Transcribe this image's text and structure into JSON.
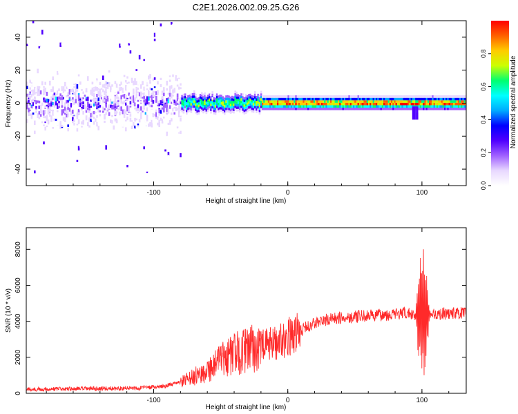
{
  "figure": {
    "title": "C2E1.2026.002.09.25.G26"
  },
  "colors": {
    "background": "#ffffff",
    "axis": "#000000",
    "snr_line": "#ff2a2a",
    "colormap": [
      "#ffffff",
      "#e8d8ff",
      "#a060ff",
      "#5000ff",
      "#0000ff",
      "#00aaff",
      "#00ffff",
      "#00ff70",
      "#ccff00",
      "#ffcc00",
      "#ff6000",
      "#ff0000"
    ]
  },
  "chart_data": [
    {
      "type": "heatmap",
      "title": "C2E1.2026.002.09.25.G26",
      "xlabel": "Height of straight line (km)",
      "ylabel": "Frequency (Hz)",
      "xlim": [
        -195,
        133
      ],
      "ylim": [
        -50,
        50
      ],
      "xticks": [
        -100,
        0,
        100
      ],
      "xtick_labels": [
        "-100",
        "0",
        "100"
      ],
      "yticks": [
        -40,
        -20,
        0,
        20,
        40
      ],
      "ytick_labels": [
        "-40",
        "-20",
        "0",
        "20",
        "40"
      ],
      "grid": false,
      "signal_band_hz": 0,
      "noise_region_end_km": -80,
      "colorbar": {
        "label": "Normalized spectral amplitude",
        "range": [
          0,
          1
        ],
        "ticks": [
          0.0,
          0.2,
          0.4,
          0.6,
          0.8
        ],
        "tick_labels": [
          "0.0",
          "0.2",
          "0.4",
          "0.6",
          "0.8"
        ]
      }
    },
    {
      "type": "line",
      "series": [
        {
          "name": "SNR"
        }
      ],
      "xlabel": "Height of straight line (km)",
      "ylabel": "SNR (10 * v/v)",
      "xlim": [
        -195,
        133
      ],
      "ylim": [
        0,
        9200
      ],
      "xticks": [
        -100,
        0,
        100
      ],
      "xtick_labels": [
        "-100",
        "0",
        "100"
      ],
      "yticks": [
        0,
        2000,
        4000,
        6000,
        8000
      ],
      "ytick_labels": [
        "0",
        "2000",
        "4000",
        "6000",
        "8000"
      ],
      "grid": false,
      "trend": {
        "x": [
          -195,
          -160,
          -120,
          -95,
          -80,
          -70,
          -60,
          -50,
          -40,
          -30,
          -20,
          -10,
          0,
          10,
          20,
          30,
          40,
          60,
          80,
          90,
          95,
          100,
          105,
          110,
          120,
          133
        ],
        "y": [
          220,
          250,
          280,
          350,
          600,
          900,
          1300,
          1800,
          2200,
          2400,
          2600,
          2800,
          3100,
          3500,
          3900,
          4100,
          4200,
          4300,
          4400,
          4450,
          4400,
          4500,
          4450,
          4400,
          4450,
          4450
        ]
      }
    }
  ]
}
